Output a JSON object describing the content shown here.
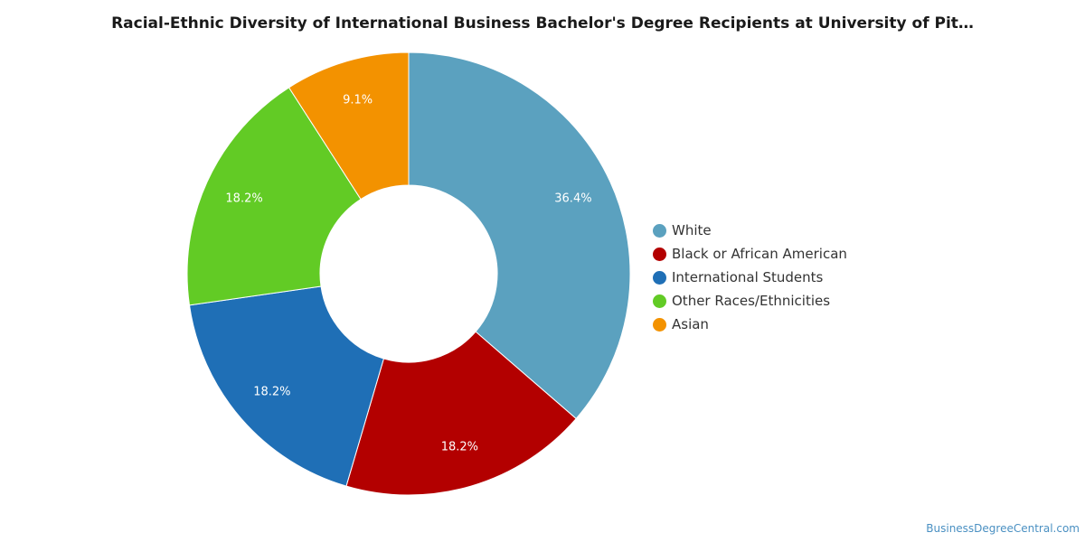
{
  "title": "Racial-Ethnic Diversity of International Business Bachelor's Degree Recipients at University of Pit…",
  "watermark": "BusinessDegreeCentral.com",
  "chart_data": {
    "type": "pie",
    "donut": true,
    "legend_position": "right",
    "slices": [
      {
        "name": "White",
        "value": 36.4,
        "label": "36.4%",
        "color": "#5ba1bf"
      },
      {
        "name": "Black or African American",
        "value": 18.2,
        "label": "18.2%",
        "color": "#b30000"
      },
      {
        "name": "International Students",
        "value": 18.2,
        "label": "18.2%",
        "color": "#1f6fb6"
      },
      {
        "name": "Other Races/Ethnicities",
        "value": 18.2,
        "label": "18.2%",
        "color": "#62cb25"
      },
      {
        "name": "Asian",
        "value": 9.1,
        "label": "9.1%",
        "color": "#f39200"
      }
    ]
  }
}
